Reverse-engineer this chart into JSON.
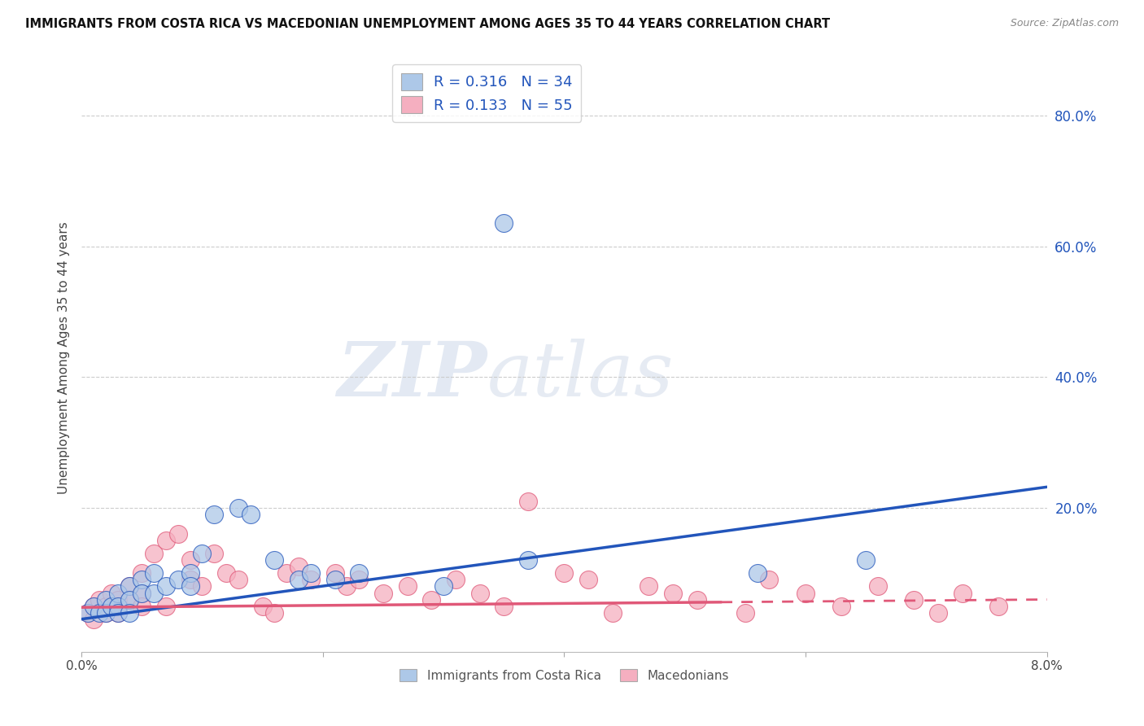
{
  "title": "IMMIGRANTS FROM COSTA RICA VS MACEDONIAN UNEMPLOYMENT AMONG AGES 35 TO 44 YEARS CORRELATION CHART",
  "source": "Source: ZipAtlas.com",
  "ylabel": "Unemployment Among Ages 35 to 44 years",
  "y_ticks": [
    0.0,
    0.2,
    0.4,
    0.6,
    0.8
  ],
  "y_tick_labels": [
    "20.0%",
    "40.0%",
    "60.0%",
    "80.0%"
  ],
  "x_range": [
    0.0,
    0.08
  ],
  "y_range": [
    -0.02,
    0.88
  ],
  "legend_R1": "R = 0.316",
  "legend_N1": "N = 34",
  "legend_R2": "R = 0.133",
  "legend_N2": "N = 55",
  "color_blue": "#adc8e8",
  "color_pink": "#f5afc0",
  "line_color_blue": "#2255bb",
  "line_color_pink": "#e05878",
  "watermark_zip": "ZIP",
  "watermark_atlas": "atlas",
  "blue_scatter_x": [
    0.0005,
    0.001,
    0.0015,
    0.002,
    0.002,
    0.0025,
    0.003,
    0.003,
    0.003,
    0.004,
    0.004,
    0.004,
    0.005,
    0.005,
    0.006,
    0.006,
    0.007,
    0.008,
    0.009,
    0.009,
    0.01,
    0.011,
    0.013,
    0.014,
    0.016,
    0.018,
    0.019,
    0.021,
    0.023,
    0.03,
    0.035,
    0.037,
    0.056,
    0.065
  ],
  "blue_scatter_y": [
    0.04,
    0.05,
    0.04,
    0.06,
    0.04,
    0.05,
    0.07,
    0.05,
    0.04,
    0.08,
    0.06,
    0.04,
    0.09,
    0.07,
    0.1,
    0.07,
    0.08,
    0.09,
    0.1,
    0.08,
    0.13,
    0.19,
    0.2,
    0.19,
    0.12,
    0.09,
    0.1,
    0.09,
    0.1,
    0.08,
    0.635,
    0.12,
    0.1,
    0.12
  ],
  "pink_scatter_x": [
    0.0005,
    0.001,
    0.001,
    0.0015,
    0.002,
    0.002,
    0.0025,
    0.003,
    0.003,
    0.003,
    0.004,
    0.004,
    0.005,
    0.005,
    0.005,
    0.006,
    0.007,
    0.007,
    0.008,
    0.009,
    0.009,
    0.01,
    0.011,
    0.012,
    0.013,
    0.015,
    0.016,
    0.017,
    0.018,
    0.019,
    0.021,
    0.022,
    0.023,
    0.025,
    0.027,
    0.029,
    0.031,
    0.033,
    0.035,
    0.037,
    0.04,
    0.042,
    0.044,
    0.047,
    0.049,
    0.051,
    0.055,
    0.057,
    0.06,
    0.063,
    0.066,
    0.069,
    0.071,
    0.073,
    0.076
  ],
  "pink_scatter_y": [
    0.04,
    0.05,
    0.03,
    0.06,
    0.05,
    0.04,
    0.07,
    0.06,
    0.05,
    0.04,
    0.08,
    0.06,
    0.1,
    0.07,
    0.05,
    0.13,
    0.15,
    0.05,
    0.16,
    0.12,
    0.09,
    0.08,
    0.13,
    0.1,
    0.09,
    0.05,
    0.04,
    0.1,
    0.11,
    0.09,
    0.1,
    0.08,
    0.09,
    0.07,
    0.08,
    0.06,
    0.09,
    0.07,
    0.05,
    0.21,
    0.1,
    0.09,
    0.04,
    0.08,
    0.07,
    0.06,
    0.04,
    0.09,
    0.07,
    0.05,
    0.08,
    0.06,
    0.04,
    0.07,
    0.05
  ],
  "blue_line_x0": 0.0,
  "blue_line_y0": 0.03,
  "blue_line_x1": 0.08,
  "blue_line_y1": 0.232,
  "pink_line_x0": 0.0,
  "pink_line_y0": 0.048,
  "pink_line_x1": 0.08,
  "pink_line_y1": 0.06,
  "pink_line_solid_end": 0.053,
  "x_tick_positions": [
    0.0,
    0.02,
    0.04,
    0.06,
    0.08
  ]
}
